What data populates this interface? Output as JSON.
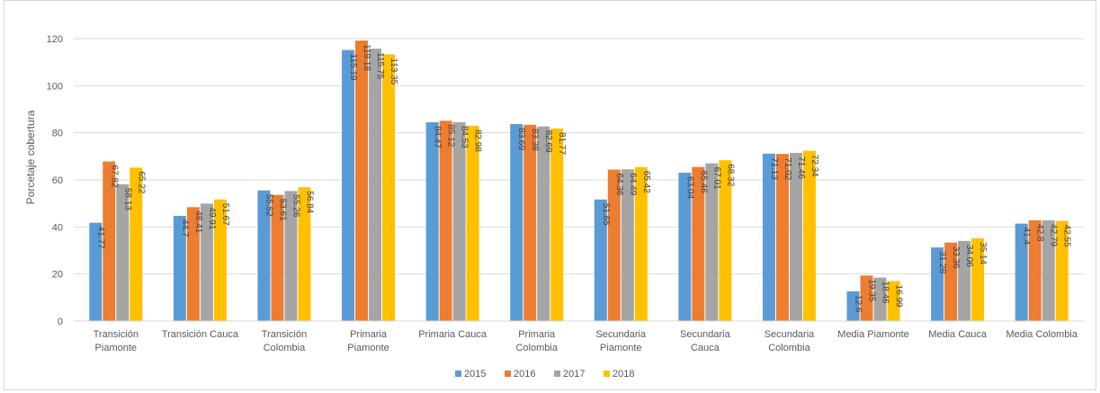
{
  "chart_data": {
    "type": "bar",
    "title": "",
    "xlabel": "",
    "ylabel": "Porcetaje cobertura",
    "ylim": [
      0,
      120
    ],
    "yticks": [
      0,
      20,
      40,
      60,
      80,
      100,
      120
    ],
    "grid": true,
    "legend_position": "bottom",
    "categories": [
      [
        "Transición",
        "Piamonte"
      ],
      [
        "Transición Cauca"
      ],
      [
        "Transición",
        "Colombia"
      ],
      [
        "Primaria",
        "Piamonte"
      ],
      [
        "Primaria Cauca"
      ],
      [
        "Primaria",
        "Colombia"
      ],
      [
        "Secundaria",
        "Piamonte"
      ],
      [
        "Secundaria",
        "Cauca"
      ],
      [
        "Secundaria",
        "Colombia"
      ],
      [
        "Media Piamonte"
      ],
      [
        "Media Cauca"
      ],
      [
        "Media Colombia"
      ]
    ],
    "series": [
      {
        "name": "2015",
        "color": "#5b9bd5",
        "values": [
          41.77,
          44.7,
          55.52,
          115.19,
          84.47,
          83.69,
          51.65,
          63.04,
          71.13,
          12.6,
          31.28,
          41.4
        ],
        "labels": [
          "41.77",
          "44.7",
          "55.52",
          "115.19",
          "84.47",
          "83.69",
          "51.65",
          "63.04",
          "71.13",
          "12.6",
          "31.28",
          "41.4"
        ]
      },
      {
        "name": "2016",
        "color": "#ed7d31",
        "values": [
          67.82,
          48.41,
          53.61,
          119.18,
          85.12,
          83.38,
          64.36,
          65.46,
          71.02,
          19.35,
          33.36,
          42.8
        ],
        "labels": [
          "67.82",
          "48.41",
          "53.61",
          "119.18",
          "85.12",
          "83.38",
          "64.36",
          "65.46",
          "71.02",
          "19.35",
          "33.36",
          "42.8"
        ]
      },
      {
        "name": "2017",
        "color": "#a5a5a5",
        "values": [
          58.13,
          49.91,
          55.26,
          115.75,
          84.53,
          82.69,
          64.49,
          67.01,
          71.46,
          18.46,
          34.06,
          42.79
        ],
        "labels": [
          "58.13",
          "49.91",
          "55.26",
          "115.75",
          "84.53",
          "82.69",
          "64.49",
          "67.01",
          "71.46",
          "18.46",
          "34.06",
          "42.79"
        ]
      },
      {
        "name": "2018",
        "color": "#ffc000",
        "values": [
          65.22,
          51.67,
          56.84,
          113.35,
          82.98,
          81.77,
          65.42,
          68.32,
          72.34,
          16.99,
          35.14,
          42.55
        ],
        "labels": [
          "65.22",
          "51.67",
          "56.84",
          "113.35",
          "82.98",
          "81.77",
          "65.42",
          "68.32",
          "72.34",
          "16.99",
          "35.14",
          "42.55"
        ]
      }
    ]
  }
}
